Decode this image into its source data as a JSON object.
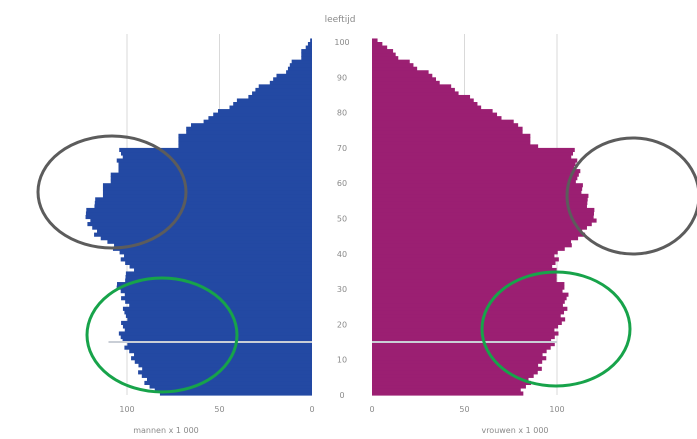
{
  "colors": {
    "men": "#2349a3",
    "women": "#9b1f72",
    "baseline": "#c9ced6",
    "axis_text": "#8a8a8a",
    "grid": "#d9d9d9",
    "circle_gray": "#5c5c5c",
    "circle_green": "#17a34a"
  },
  "chart_data": {
    "type": "bar",
    "orientation": "horizontal",
    "subtype": "population-pyramid",
    "title": "",
    "age_axis_label": "leeftijd",
    "age_ticks": [
      "100",
      "90",
      "80",
      "70",
      "60",
      "50",
      "40",
      "30",
      "20",
      "10",
      "0"
    ],
    "age_range": [
      0,
      100
    ],
    "series": [
      {
        "name": "mannen x 1 000",
        "side": "left",
        "axis_label": "mannen x 1 000",
        "ticks": [
          "100",
          "50",
          "0"
        ],
        "xlim": [
          0,
          100
        ],
        "points": [
          [
            0,
            84
          ],
          [
            5,
            92
          ],
          [
            10,
            96
          ],
          [
            15,
            103
          ],
          [
            20,
            102
          ],
          [
            25,
            100
          ],
          [
            30,
            105
          ],
          [
            35,
            98
          ],
          [
            40,
            104
          ],
          [
            45,
            116
          ],
          [
            50,
            123
          ],
          [
            55,
            116
          ],
          [
            60,
            110
          ],
          [
            65,
            104
          ],
          [
            69,
            103
          ],
          [
            70,
            74
          ],
          [
            75,
            68
          ],
          [
            80,
            49
          ],
          [
            85,
            33
          ],
          [
            90,
            18
          ],
          [
            95,
            7
          ],
          [
            100,
            1
          ]
        ]
      },
      {
        "name": "vrouwen x 1 000",
        "side": "right",
        "axis_label": "vrouwen x 1 000",
        "ticks": [
          "0",
          "50",
          "100"
        ],
        "xlim": [
          0,
          100
        ],
        "points": [
          [
            0,
            80
          ],
          [
            5,
            88
          ],
          [
            10,
            93
          ],
          [
            15,
            98
          ],
          [
            20,
            102
          ],
          [
            25,
            105
          ],
          [
            30,
            104
          ],
          [
            35,
            98
          ],
          [
            40,
            101
          ],
          [
            45,
            114
          ],
          [
            50,
            121
          ],
          [
            55,
            116
          ],
          [
            60,
            112
          ],
          [
            65,
            110
          ],
          [
            69,
            109
          ],
          [
            70,
            88
          ],
          [
            75,
            82
          ],
          [
            80,
            64
          ],
          [
            85,
            48
          ],
          [
            90,
            32
          ],
          [
            95,
            16
          ],
          [
            100,
            3
          ]
        ]
      }
    ],
    "highlight_lines": [
      {
        "age": 15
      }
    ],
    "annotations": [
      {
        "shape": "ellipse",
        "color": "gray",
        "side": "men",
        "age_range": [
          45,
          70
        ]
      },
      {
        "shape": "ellipse",
        "color": "gray",
        "side": "women",
        "age_range": [
          45,
          70
        ]
      },
      {
        "shape": "ellipse",
        "color": "green",
        "side": "men",
        "age_range": [
          5,
          25
        ]
      },
      {
        "shape": "ellipse",
        "color": "green",
        "side": "women",
        "age_range": [
          5,
          25
        ]
      }
    ],
    "grid": true,
    "legend": "none"
  }
}
